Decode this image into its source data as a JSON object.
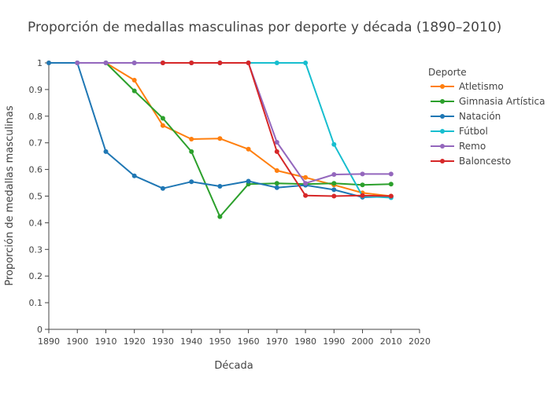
{
  "chart_data": {
    "type": "line",
    "title": "Proporción de medallas masculinas por deporte y década (1890–2010)",
    "xlabel": "Década",
    "ylabel": "Proporción de medallas masculinas",
    "xlim": [
      1890,
      2020
    ],
    "ylim": [
      0,
      1
    ],
    "x_ticks": [
      "1890",
      "1900",
      "1910",
      "1920",
      "1930",
      "1940",
      "1950",
      "1960",
      "1970",
      "1980",
      "1990",
      "2000",
      "2010",
      "2020"
    ],
    "y_ticks": [
      "0",
      "0.1",
      "0.2",
      "0.3",
      "0.4",
      "0.5",
      "0.6",
      "0.7",
      "0.8",
      "0.9",
      "1"
    ],
    "grid": false,
    "legend": {
      "title": "Deporte",
      "position": "right"
    },
    "series": [
      {
        "name": "Atletismo",
        "color": "#ff7f0e",
        "x": [
          1890,
          1900,
          1910,
          1920,
          1930,
          1940,
          1950,
          1960,
          1970,
          1980,
          1990,
          2000,
          2010
        ],
        "y": [
          1,
          1,
          1,
          0.935,
          0.765,
          0.714,
          0.716,
          0.676,
          0.596,
          0.57,
          0.542,
          0.512,
          0.5
        ]
      },
      {
        "name": "Gimnasia Artística",
        "color": "#2ca02c",
        "x": [
          1910,
          1920,
          1930,
          1940,
          1950,
          1960,
          1970,
          1980,
          1990,
          2000,
          2010
        ],
        "y": [
          1,
          0.895,
          0.792,
          0.667,
          0.423,
          0.545,
          0.548,
          0.545,
          0.548,
          0.542,
          0.545
        ]
      },
      {
        "name": "Natación",
        "color": "#1f77b4",
        "x": [
          1890,
          1900,
          1910,
          1920,
          1930,
          1940,
          1950,
          1960,
          1970,
          1980,
          1990,
          2000,
          2010
        ],
        "y": [
          1,
          1,
          0.667,
          0.576,
          0.529,
          0.554,
          0.537,
          0.556,
          0.532,
          0.541,
          0.524,
          0.496,
          0.498
        ]
      },
      {
        "name": "Fútbol",
        "color": "#17becf",
        "x": [
          1900,
          1910,
          1920,
          1930,
          1940,
          1950,
          1960,
          1970,
          1980,
          1990,
          2000,
          2010
        ],
        "y": [
          1,
          1,
          1,
          1,
          1,
          1,
          1,
          1,
          1,
          0.694,
          0.5,
          0.494
        ]
      },
      {
        "name": "Remo",
        "color": "#9467bd",
        "x": [
          1900,
          1910,
          1920,
          1930,
          1940,
          1950,
          1960,
          1970,
          1980,
          1990,
          2000,
          2010
        ],
        "y": [
          1,
          1,
          1,
          1,
          1,
          1,
          1,
          0.702,
          0.548,
          0.581,
          0.583,
          0.583
        ]
      },
      {
        "name": "Baloncesto",
        "color": "#d62728",
        "x": [
          1930,
          1940,
          1950,
          1960,
          1970,
          1980,
          1990,
          2000,
          2010
        ],
        "y": [
          1,
          1,
          1,
          1,
          0.667,
          0.502,
          0.5,
          0.502,
          0.5
        ]
      }
    ]
  }
}
